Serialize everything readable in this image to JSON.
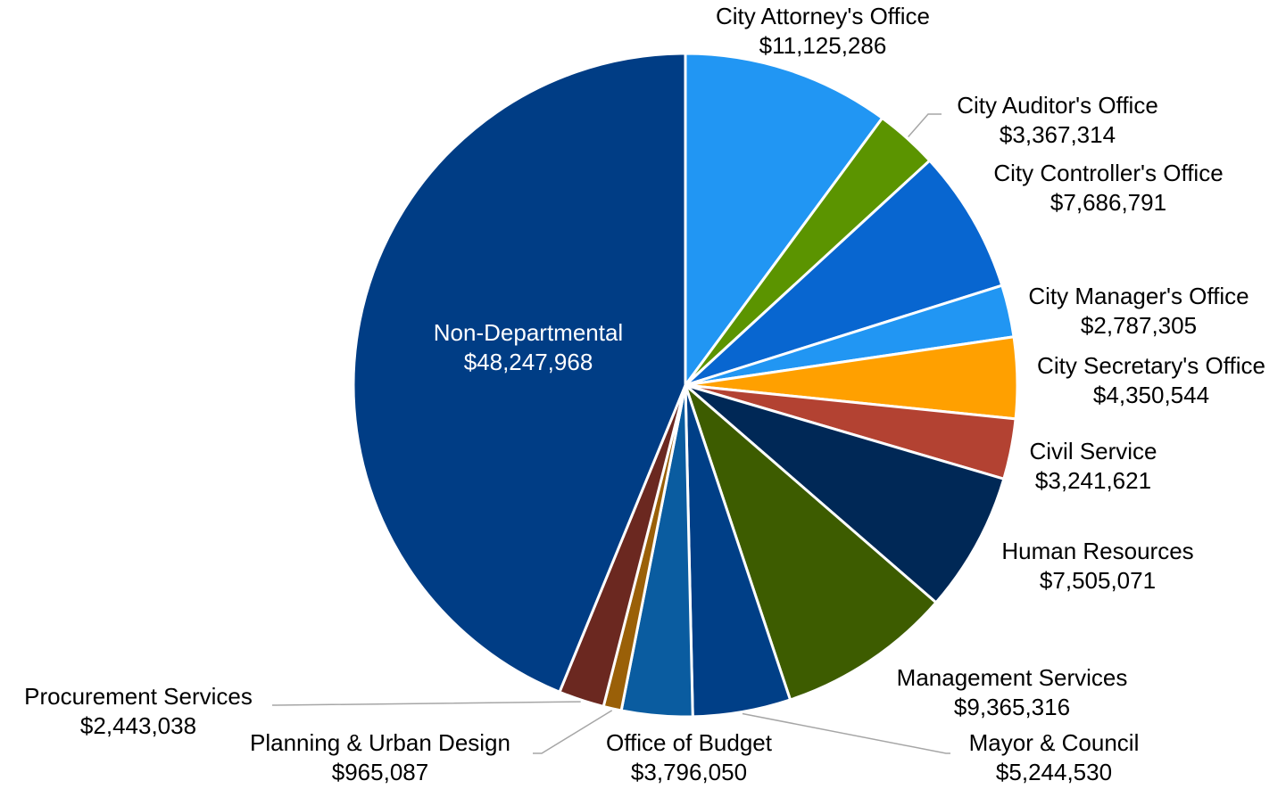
{
  "chart_data": {
    "type": "pie",
    "categories": [
      "City Attorney's Office",
      "City Auditor's Office",
      "City Controller's Office",
      "City Manager's Office",
      "City Secretary's Office",
      "Civil Service",
      "Human Resources",
      "Management Services",
      "Mayor & Council",
      "Office of Budget",
      "Planning & Urban Design",
      "Procurement Services",
      "Non-Departmental"
    ],
    "values": [
      11125286,
      3367314,
      7686791,
      2787305,
      4350544,
      3241621,
      7505071,
      9365316,
      5244530,
      3796050,
      965087,
      2443038,
      48247968
    ],
    "value_labels": [
      "$11,125,286",
      "$3,367,314",
      "$7,686,791",
      "$2,787,305",
      "$4,350,544",
      "$3,241,621",
      "$7,505,071",
      "$9,365,316",
      "$5,244,530",
      "$3,796,050",
      "$965,087",
      "$2,443,038",
      "$48,247,968"
    ],
    "colors": [
      "#2196f3",
      "#5b9400",
      "#0866d0",
      "#2196f3",
      "#ffa000",
      "#b34232",
      "#002856",
      "#3d5c00",
      "#003f87",
      "#0a5ca0",
      "#9a6008",
      "#6b2820",
      "#003d85"
    ]
  }
}
